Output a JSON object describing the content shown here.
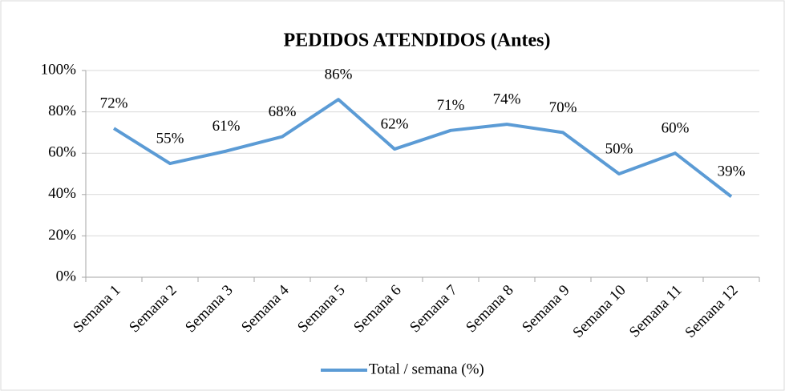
{
  "chart_data": {
    "type": "line",
    "title": "PEDIDOS ATENDIDOS (Antes)",
    "categories": [
      "Semana 1",
      "Semana 2",
      "Semana 3",
      "Semana 4",
      "Semana 5",
      "Semana 6",
      "Semana 7",
      "Semana 8",
      "Semana 9",
      "Semana 10",
      "Semana 11",
      "Semana 12"
    ],
    "series": [
      {
        "name": "Total / semana (%)",
        "color": "#5b9bd5",
        "values": [
          72,
          55,
          61,
          68,
          86,
          62,
          71,
          74,
          70,
          50,
          60,
          39
        ],
        "value_labels": [
          "72%",
          "55%",
          "61%",
          "68%",
          "86%",
          "62%",
          "71%",
          "74%",
          "70%",
          "50%",
          "60%",
          "39%"
        ]
      }
    ],
    "ylim": [
      0,
      100
    ],
    "yticks": [
      {
        "value": 0,
        "label": "0%"
      },
      {
        "value": 20,
        "label": "20%"
      },
      {
        "value": 40,
        "label": "40%"
      },
      {
        "value": 60,
        "label": "60%"
      },
      {
        "value": 80,
        "label": "80%"
      },
      {
        "value": 100,
        "label": "100%"
      }
    ],
    "grid": true,
    "legend": "bottom"
  }
}
